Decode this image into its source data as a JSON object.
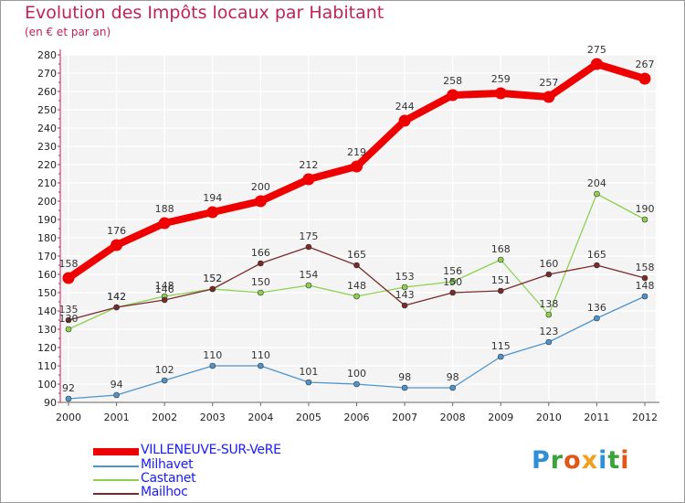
{
  "title": "Evolution des Impôts locaux par Habitant",
  "subtitle": "(en € et par an)",
  "brand": {
    "text": "Proxiti",
    "letters": [
      {
        "ch": "P",
        "color": "#2f8fd8"
      },
      {
        "ch": "r",
        "color": "#3aa33a"
      },
      {
        "ch": "o",
        "color": "#e0571a"
      },
      {
        "ch": "x",
        "color": "#f0a020"
      },
      {
        "ch": "i",
        "color": "#2f8fd8"
      },
      {
        "ch": "t",
        "color": "#3aa33a"
      },
      {
        "ch": "i",
        "color": "#e0571a"
      }
    ]
  },
  "chart_data": {
    "type": "line",
    "title": "Evolution des Impôts locaux par Habitant",
    "subtitle": "(en € et par an)",
    "x": [
      "2000",
      "2001",
      "2002",
      "2003",
      "2004",
      "2005",
      "2006",
      "2007",
      "2008",
      "2009",
      "2010",
      "2011",
      "2012"
    ],
    "ylim": [
      90,
      280
    ],
    "yticks": [
      90,
      100,
      110,
      120,
      130,
      140,
      150,
      160,
      170,
      180,
      190,
      200,
      210,
      220,
      230,
      240,
      250,
      260,
      270,
      280
    ],
    "grid": true,
    "legend_position": "bottom-left",
    "series": [
      {
        "name": "VILLENEUVE-SUR-VeRE",
        "color": "#ee0000",
        "values": [
          158,
          176,
          188,
          194,
          200,
          212,
          219,
          244,
          258,
          259,
          257,
          275,
          267
        ]
      },
      {
        "name": "Milhavet",
        "color": "#4f94cc",
        "values": [
          92,
          94,
          102,
          110,
          110,
          101,
          100,
          98,
          98,
          115,
          123,
          136,
          148
        ]
      },
      {
        "name": "Castanet",
        "color": "#8ed150",
        "values": [
          130,
          142,
          148,
          152,
          150,
          154,
          148,
          153,
          156,
          168,
          138,
          204,
          190
        ]
      },
      {
        "name": "Mailhoc",
        "color": "#7a2a2a",
        "values": [
          135,
          142,
          146,
          152,
          166,
          175,
          165,
          143,
          150,
          151,
          160,
          165,
          158
        ]
      }
    ]
  }
}
